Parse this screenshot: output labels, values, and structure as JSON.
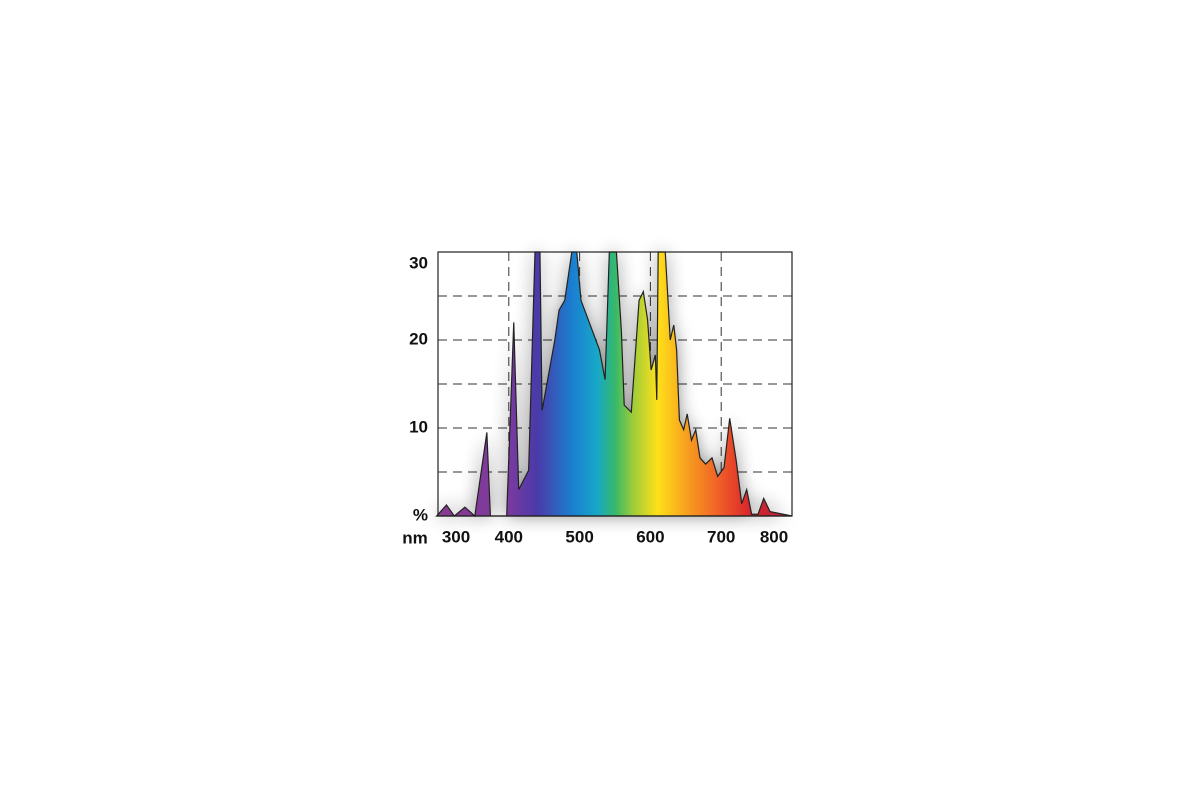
{
  "chart_data": {
    "type": "area",
    "x_label": "nm",
    "x": [
      298,
      312,
      323,
      338,
      352,
      369,
      374,
      397,
      407,
      414,
      428,
      437,
      444,
      447,
      465,
      471,
      479,
      489,
      496,
      502,
      528,
      536,
      542,
      552,
      559,
      563,
      573,
      584,
      590,
      596,
      601,
      607,
      609,
      611,
      621,
      628,
      633,
      637,
      641,
      647,
      652,
      658,
      664,
      670,
      678,
      687,
      695,
      704,
      712,
      721,
      729,
      736,
      743,
      752,
      760,
      769,
      800
    ],
    "values": [
      0,
      1.25,
      0,
      1,
      0,
      9.5,
      0,
      0,
      22,
      3,
      5.2,
      30,
      30,
      12,
      20,
      23.4,
      24.5,
      30,
      30,
      24.5,
      18.9,
      15.5,
      30,
      30,
      21,
      12.6,
      11.8,
      24.5,
      25.5,
      22.3,
      16.6,
      18.3,
      13.2,
      30,
      30,
      20,
      21.7,
      18.9,
      10.9,
      9.8,
      11.6,
      8.6,
      9.8,
      6.6,
      5.9,
      6.6,
      4.5,
      5.5,
      11.1,
      6.4,
      1.4,
      3,
      0.2,
      0.2,
      2,
      0.5,
      0
    ],
    "xlim": [
      300,
      800
    ],
    "xticks": [
      300,
      400,
      500,
      600,
      700,
      800
    ],
    "ylim": [
      0,
      30
    ],
    "yticks": [
      {
        "value": 0,
        "label": "%"
      },
      10,
      20,
      30
    ],
    "yminor": [
      5,
      15,
      25
    ],
    "grid": true
  }
}
